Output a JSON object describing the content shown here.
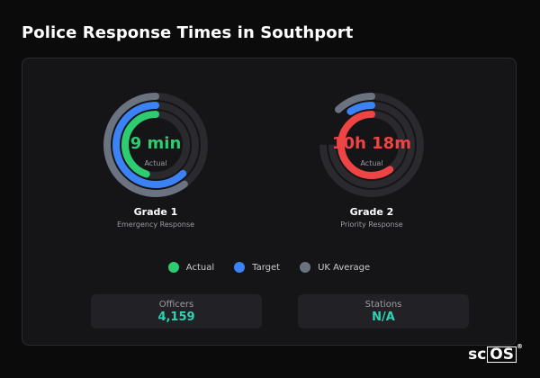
{
  "page": {
    "title": "Police Response Times in Southport"
  },
  "colors": {
    "actual": "#2ecc71",
    "target": "#3b82f6",
    "uk_average": "#6b7280",
    "track": "#2a2a2e",
    "grade2_actual": "#ef4444"
  },
  "gauges": [
    {
      "value_text": "9 min",
      "value_color": "#2ecc71",
      "sub_label": "Actual",
      "grade_label": "Grade 1",
      "description": "Emergency Response",
      "rings": {
        "uk_average": 0.6,
        "target": 0.62,
        "actual": 0.45
      }
    },
    {
      "value_text": "10h 18m",
      "value_color": "#ef4444",
      "sub_label": "Actual",
      "grade_label": "Grade 2",
      "description": "Priority Response",
      "rings": {
        "uk_average": 0.12,
        "target": 0.09,
        "actual": 0.6
      }
    }
  ],
  "legend": [
    {
      "label": "Actual",
      "color": "#2ecc71"
    },
    {
      "label": "Target",
      "color": "#3b82f6"
    },
    {
      "label": "UK Average",
      "color": "#6b7280"
    }
  ],
  "stats": [
    {
      "label": "Officers",
      "value": "4,159"
    },
    {
      "label": "Stations",
      "value": "N/A"
    }
  ],
  "brand": {
    "prefix": "sc",
    "boxed": "OS",
    "reg": "®"
  }
}
